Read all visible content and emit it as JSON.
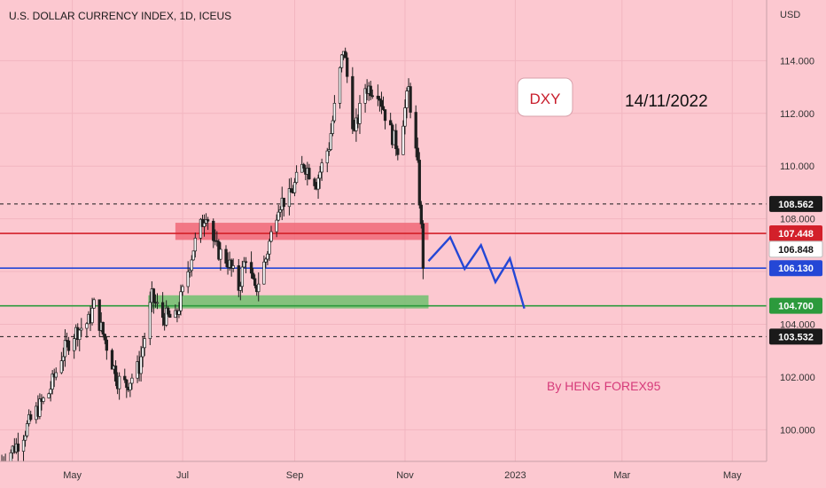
{
  "chart_data": {
    "type": "candlestick",
    "title": "U.S. DOLLAR CURRENCY INDEX, 1D, ICEUS",
    "currency": "USD",
    "ylim": [
      98.8,
      116.3
    ],
    "y_ticks": [
      100.0,
      102.0,
      104.0,
      106.0,
      108.0,
      110.0,
      112.0,
      114.0
    ],
    "y_tick_labels": [
      "100.000",
      "102.000",
      "104.000",
      "106.000",
      "108.000",
      "110.000",
      "112.000",
      "114.000"
    ],
    "x_tick_labels": [
      "May",
      "Jul",
      "Sep",
      "Nov",
      "2023",
      "Mar",
      "May"
    ],
    "x_tick_dates": [
      "2022-05-01",
      "2022-07-01",
      "2022-09-01",
      "2022-11-01",
      "2023-01-01",
      "2023-03-01",
      "2023-05-01"
    ],
    "x_range": [
      "2022-03-22",
      "2023-05-20"
    ],
    "candle_dates": [
      "2022-03-23",
      "2022-11-11"
    ],
    "close_path": [
      {
        "date": "2022-03-23",
        "value": 98.8
      },
      {
        "date": "2022-04-01",
        "value": 99.5
      },
      {
        "date": "2022-04-10",
        "value": 100.6
      },
      {
        "date": "2022-04-18",
        "value": 101.4
      },
      {
        "date": "2022-04-25",
        "value": 102.8
      },
      {
        "date": "2022-05-01",
        "value": 103.6
      },
      {
        "date": "2022-05-10",
        "value": 104.1
      },
      {
        "date": "2022-05-13",
        "value": 104.7
      },
      {
        "date": "2022-05-20",
        "value": 103.2
      },
      {
        "date": "2022-05-26",
        "value": 101.9
      },
      {
        "date": "2022-05-31",
        "value": 101.7
      },
      {
        "date": "2022-06-07",
        "value": 102.4
      },
      {
        "date": "2022-06-14",
        "value": 105.0
      },
      {
        "date": "2022-06-20",
        "value": 104.3
      },
      {
        "date": "2022-06-27",
        "value": 104.2
      },
      {
        "date": "2022-07-01",
        "value": 105.2
      },
      {
        "date": "2022-07-07",
        "value": 106.9
      },
      {
        "date": "2022-07-14",
        "value": 108.3
      },
      {
        "date": "2022-07-19",
        "value": 106.9
      },
      {
        "date": "2022-07-26",
        "value": 106.4
      },
      {
        "date": "2022-08-01",
        "value": 105.4
      },
      {
        "date": "2022-08-05",
        "value": 106.6
      },
      {
        "date": "2022-08-10",
        "value": 105.2
      },
      {
        "date": "2022-08-16",
        "value": 106.5
      },
      {
        "date": "2022-08-23",
        "value": 108.6
      },
      {
        "date": "2022-08-29",
        "value": 108.8
      },
      {
        "date": "2022-09-06",
        "value": 110.1
      },
      {
        "date": "2022-09-13",
        "value": 109.4
      },
      {
        "date": "2022-09-20",
        "value": 110.8
      },
      {
        "date": "2022-09-28",
        "value": 114.5
      },
      {
        "date": "2022-10-04",
        "value": 111.2
      },
      {
        "date": "2022-10-10",
        "value": 113.0
      },
      {
        "date": "2022-10-17",
        "value": 112.9
      },
      {
        "date": "2022-10-24",
        "value": 111.3
      },
      {
        "date": "2022-10-28",
        "value": 110.7
      },
      {
        "date": "2022-11-03",
        "value": 112.9
      },
      {
        "date": "2022-11-08",
        "value": 109.9
      },
      {
        "date": "2022-11-10",
        "value": 107.6
      },
      {
        "date": "2022-11-11",
        "value": 106.3
      }
    ],
    "horizontal_lines": [
      {
        "value": 108.562,
        "label": "108.562",
        "style": "dashed",
        "color": "#1a1a1a"
      },
      {
        "value": 107.448,
        "label": "107.448",
        "style": "solid",
        "color": "#d3202a"
      },
      {
        "value": 106.848,
        "label": "106.848",
        "style": "price",
        "color": "#ffffff"
      },
      {
        "value": 106.13,
        "label": "106.130",
        "style": "solid",
        "color": "#2447d6"
      },
      {
        "value": 104.7,
        "label": "104.700",
        "style": "solid",
        "color": "#2c9a3c"
      },
      {
        "value": 103.532,
        "label": "103.532",
        "style": "dashed",
        "color": "#1a1a1a"
      }
    ],
    "zones": [
      {
        "from_date": "2022-06-27",
        "to_date": "2022-11-14",
        "low": 107.2,
        "high": 107.85,
        "color": "#f06878"
      },
      {
        "from_date": "2022-06-12",
        "to_date": "2022-11-14",
        "low": 104.6,
        "high": 105.1,
        "color": "#6fbf6f"
      }
    ],
    "projection": [
      {
        "date": "2022-11-14",
        "value": 106.4
      },
      {
        "date": "2022-11-26",
        "value": 107.3
      },
      {
        "date": "2022-12-04",
        "value": 106.1
      },
      {
        "date": "2022-12-13",
        "value": 107.0
      },
      {
        "date": "2022-12-21",
        "value": 105.6
      },
      {
        "date": "2022-12-29",
        "value": 106.5
      },
      {
        "date": "2023-01-06",
        "value": 104.6
      }
    ],
    "annotations": {
      "symbol_box": "DXY",
      "date_label": "14/11/2022",
      "author": "By HENG FOREX95"
    }
  },
  "colors": {
    "background": "#fcc8d0",
    "candle_body": "#1f1f1f",
    "projection": "#2447d6",
    "dxy_text": "#c81e2c",
    "author_text": "#d63a7a",
    "grid": "#f2b6c0"
  }
}
